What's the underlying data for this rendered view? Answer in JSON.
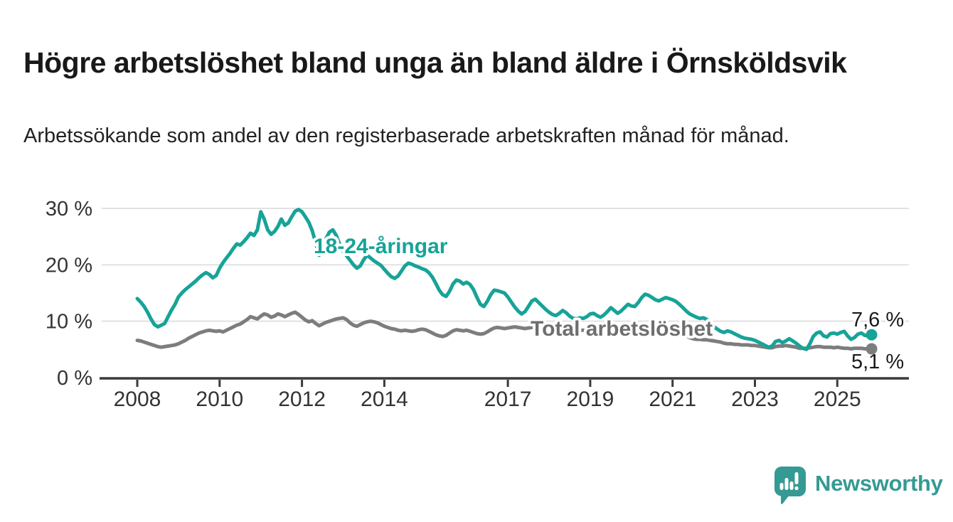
{
  "header": {
    "title": "Högre arbetslöshet bland unga än bland äldre i Örnsköldsvik",
    "subtitle": "Arbetssökande som andel av den registerbaserade arbetskraften månad för månad."
  },
  "footer": {
    "brand": "Newsworthy",
    "logo_icon": "speech-bubble-bar-chart-icon"
  },
  "colors": {
    "accent_teal": "#17a398",
    "line_gray": "#7d7d7d",
    "label_gray": "#6e6e6e",
    "end_label_text": "#1a1a1a",
    "axis_text": "#333333",
    "axis_line": "#3b3b3b",
    "gridline": "#e1e1e1",
    "brand_teal": "#359a94",
    "halo_white": "#ffffff"
  },
  "chart_data": {
    "type": "line",
    "title": "Högre arbetslöshet bland unga än bland äldre i Örnsköldsvik",
    "subtitle": "Arbetssökande som andel av den registerbaserade arbetskraften månad för månad.",
    "frequency": "monthly",
    "start_month": "2008-01",
    "end_month": "2025-11",
    "grid": "horizontal",
    "legend_position": "inline-labels",
    "ylim": [
      0,
      31
    ],
    "xlabel": "",
    "ylabel": "",
    "y_ticks": [
      {
        "value": 0,
        "label": "0 %"
      },
      {
        "value": 10,
        "label": "10 %"
      },
      {
        "value": 20,
        "label": "20 %"
      },
      {
        "value": 30,
        "label": "30 %"
      }
    ],
    "x_ticks": [
      {
        "year": 2008,
        "label": "2008"
      },
      {
        "year": 2010,
        "label": "2010"
      },
      {
        "year": 2012,
        "label": "2012"
      },
      {
        "year": 2014,
        "label": "2014"
      },
      {
        "year": 2017,
        "label": "2017"
      },
      {
        "year": 2019,
        "label": "2019"
      },
      {
        "year": 2021,
        "label": "2021"
      },
      {
        "year": 2023,
        "label": "2023"
      },
      {
        "year": 2025,
        "label": "2025"
      }
    ],
    "series": [
      {
        "id": "youth",
        "name": "18-24-åringar",
        "color": "#17a398",
        "label_color": "#17a398",
        "end_label": "7,6 %",
        "end_value": 7.6,
        "values": [
          14.0,
          13.4,
          12.6,
          11.6,
          10.4,
          9.4,
          9.0,
          9.3,
          9.6,
          10.8,
          12.0,
          13.0,
          14.3,
          15.0,
          15.6,
          16.1,
          16.6,
          17.1,
          17.7,
          18.2,
          18.6,
          18.3,
          17.7,
          18.1,
          19.4,
          20.4,
          21.2,
          22.0,
          22.9,
          23.7,
          23.5,
          24.1,
          24.8,
          25.6,
          25.2,
          26.2,
          29.4,
          28.1,
          26.2,
          25.4,
          25.9,
          26.8,
          28.1,
          27.0,
          27.4,
          28.5,
          29.5,
          29.8,
          29.4,
          28.5,
          27.5,
          26.0,
          23.9,
          21.7,
          22.8,
          24.6,
          25.8,
          26.2,
          25.2,
          23.6,
          22.4,
          21.6,
          20.8,
          20.0,
          19.4,
          19.8,
          20.9,
          21.7,
          21.2,
          20.7,
          20.3,
          19.9,
          19.2,
          18.5,
          17.9,
          17.6,
          18.0,
          18.9,
          19.8,
          20.3,
          20.1,
          19.8,
          19.6,
          19.3,
          19.1,
          18.6,
          17.8,
          16.7,
          15.5,
          14.7,
          14.4,
          15.3,
          16.6,
          17.3,
          17.1,
          16.6,
          16.9,
          16.5,
          15.6,
          14.2,
          13.0,
          12.6,
          13.5,
          14.7,
          15.5,
          15.4,
          15.2,
          15.0,
          14.3,
          13.4,
          12.5,
          11.8,
          11.3,
          11.7,
          12.6,
          13.6,
          13.9,
          13.3,
          12.7,
          12.1,
          11.6,
          11.2,
          11.0,
          11.4,
          11.9,
          11.5,
          10.9,
          10.5,
          10.4,
          10.6,
          10.5,
          10.8,
          11.3,
          11.4,
          11.0,
          10.7,
          11.1,
          11.7,
          12.4,
          11.9,
          11.4,
          11.8,
          12.4,
          13.0,
          12.7,
          12.6,
          13.3,
          14.2,
          14.8,
          14.6,
          14.2,
          13.8,
          13.6,
          13.9,
          14.2,
          14.0,
          13.8,
          13.5,
          13.0,
          12.4,
          11.8,
          11.3,
          11.0,
          10.7,
          10.5,
          10.6,
          10.3,
          9.7,
          9.1,
          8.6,
          8.2,
          8.0,
          8.3,
          8.1,
          7.8,
          7.5,
          7.2,
          7.0,
          6.9,
          6.8,
          6.6,
          6.3,
          6.0,
          5.7,
          5.4,
          5.6,
          6.4,
          6.6,
          6.2,
          6.5,
          6.9,
          6.5,
          6.1,
          5.6,
          5.2,
          5.0,
          6.0,
          7.3,
          7.9,
          8.1,
          7.4,
          7.2,
          7.8,
          7.9,
          7.7,
          8.0,
          8.2,
          7.4,
          6.8,
          7.1,
          7.7,
          7.9,
          7.5,
          7.4,
          7.6
        ]
      },
      {
        "id": "total",
        "name": "Total arbetslöshet",
        "color": "#7d7d7d",
        "label_color": "#6e6e6e",
        "end_label": "5,1 %",
        "end_value": 5.1,
        "values": [
          6.6,
          6.5,
          6.3,
          6.1,
          5.9,
          5.7,
          5.5,
          5.4,
          5.5,
          5.6,
          5.7,
          5.8,
          6.0,
          6.3,
          6.6,
          7.0,
          7.3,
          7.6,
          7.9,
          8.1,
          8.3,
          8.4,
          8.3,
          8.2,
          8.3,
          8.1,
          8.4,
          8.7,
          9.0,
          9.3,
          9.5,
          9.9,
          10.3,
          10.8,
          10.6,
          10.4,
          10.9,
          11.3,
          11.1,
          10.7,
          10.9,
          11.3,
          11.1,
          10.8,
          11.1,
          11.4,
          11.6,
          11.2,
          10.7,
          10.2,
          9.9,
          10.1,
          9.6,
          9.2,
          9.5,
          9.8,
          10.0,
          10.2,
          10.4,
          10.5,
          10.6,
          10.3,
          9.7,
          9.3,
          9.1,
          9.4,
          9.7,
          9.9,
          10.0,
          9.9,
          9.7,
          9.4,
          9.1,
          8.9,
          8.7,
          8.6,
          8.4,
          8.3,
          8.4,
          8.3,
          8.2,
          8.3,
          8.5,
          8.6,
          8.5,
          8.2,
          7.9,
          7.6,
          7.4,
          7.3,
          7.5,
          7.9,
          8.3,
          8.5,
          8.4,
          8.3,
          8.4,
          8.2,
          8.0,
          7.8,
          7.7,
          7.8,
          8.1,
          8.5,
          8.8,
          8.9,
          8.8,
          8.7,
          8.8,
          8.9,
          9.0,
          8.9,
          8.8,
          8.7,
          8.8,
          8.9,
          9.0,
          8.9,
          8.8,
          8.7,
          8.7,
          8.6,
          8.5,
          8.5,
          8.6,
          8.5,
          8.4,
          8.3,
          8.3,
          8.4,
          8.4,
          8.3,
          8.4,
          8.3,
          8.2,
          8.1,
          8.2,
          8.1,
          8.0,
          8.0,
          8.1,
          8.0,
          8.0,
          8.1,
          8.1,
          8.2,
          8.6,
          8.9,
          9.1,
          9.2,
          9.1,
          9.0,
          8.9,
          8.8,
          8.7,
          8.6,
          8.5,
          8.3,
          8.0,
          7.7,
          7.4,
          7.1,
          6.9,
          6.8,
          6.8,
          6.7,
          6.7,
          6.6,
          6.5,
          6.4,
          6.3,
          6.1,
          6.0,
          6.0,
          5.9,
          5.9,
          5.8,
          5.8,
          5.8,
          5.7,
          5.7,
          5.6,
          5.5,
          5.4,
          5.3,
          5.3,
          5.5,
          5.6,
          5.6,
          5.7,
          5.6,
          5.5,
          5.4,
          5.2,
          5.2,
          5.2,
          5.3,
          5.4,
          5.5,
          5.5,
          5.4,
          5.4,
          5.4,
          5.3,
          5.4,
          5.3,
          5.2,
          5.2,
          5.1,
          5.2,
          5.2,
          5.2,
          5.1,
          5.1,
          5.1
        ]
      }
    ]
  }
}
